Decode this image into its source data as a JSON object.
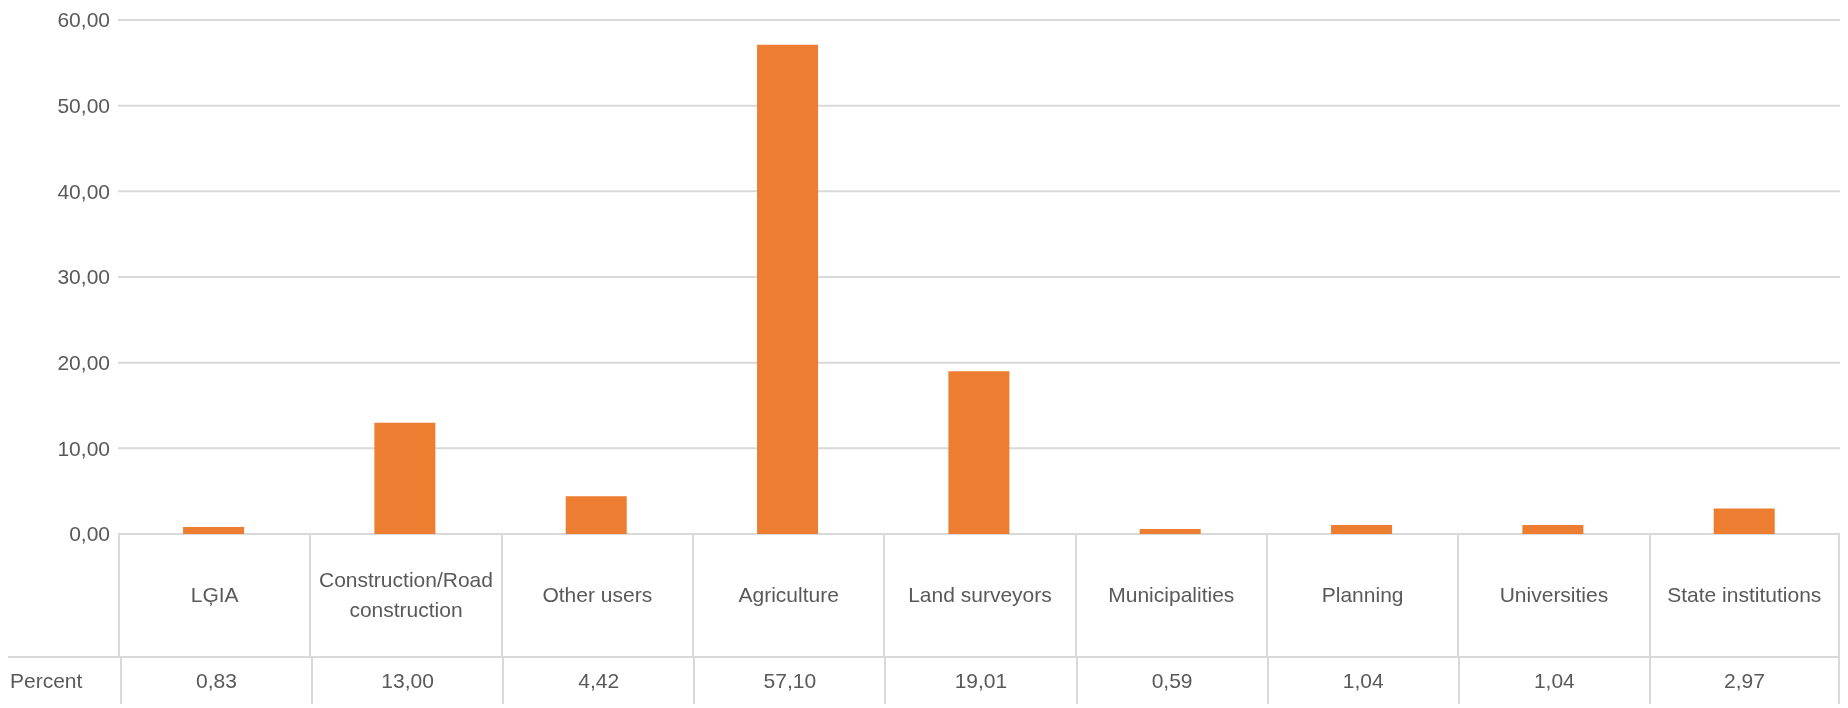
{
  "chart_data": {
    "type": "bar",
    "categories": [
      "LĢIA",
      "Construction/Road construction",
      "Other users",
      "Agriculture",
      "Land surveyors",
      "Municipalities",
      "Planning",
      "Universities",
      "State institutions"
    ],
    "series": [
      {
        "name": "Percent",
        "color": "#ed7d31",
        "values": [
          0.83,
          13.0,
          4.42,
          57.1,
          19.01,
          0.59,
          1.04,
          1.04,
          2.97
        ],
        "value_labels": [
          "0,83",
          "13,00",
          "4,42",
          "57,10",
          "19,01",
          "0,59",
          "1,04",
          "1,04",
          "2,97"
        ]
      }
    ],
    "ylim": [
      0,
      60
    ],
    "yticks": [
      {
        "value": 0,
        "label": "0,00"
      },
      {
        "value": 10,
        "label": "10,00"
      },
      {
        "value": 20,
        "label": "20,00"
      },
      {
        "value": 30,
        "label": "30,00"
      },
      {
        "value": 40,
        "label": "40,00"
      },
      {
        "value": 50,
        "label": "50,00"
      },
      {
        "value": 60,
        "label": "60,00"
      }
    ],
    "grid": "y",
    "legend": false
  }
}
